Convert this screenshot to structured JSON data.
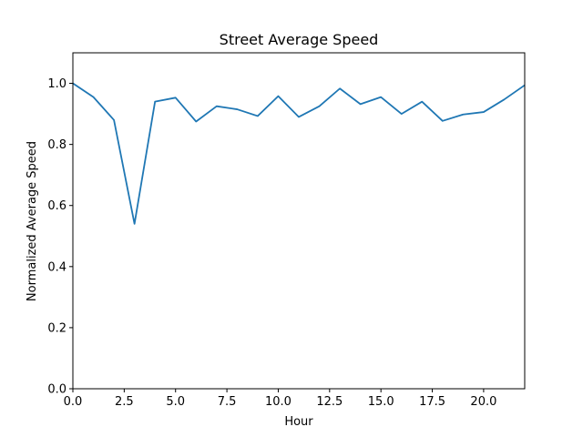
{
  "chart_data": {
    "type": "line",
    "title": "Street Average Speed",
    "xlabel": "Hour",
    "ylabel": "Normalized Average Speed",
    "xlim": [
      0,
      22
    ],
    "ylim": [
      0,
      1.1
    ],
    "xticks": [
      0,
      2.5,
      5,
      7.5,
      10,
      12.5,
      15,
      17.5,
      20
    ],
    "xtick_labels": [
      "0.0",
      "2.5",
      "5.0",
      "7.5",
      "10.0",
      "12.5",
      "15.0",
      "17.5",
      "20.0"
    ],
    "yticks": [
      0,
      0.2,
      0.4,
      0.6,
      0.8,
      1.0
    ],
    "ytick_labels": [
      "0.0",
      "0.2",
      "0.4",
      "0.6",
      "0.8",
      "1.0"
    ],
    "grid": false,
    "legend": "none",
    "series": [
      {
        "color": "#1f77b4",
        "x": [
          0,
          1,
          2,
          3,
          4,
          5,
          6,
          7,
          8,
          9,
          10,
          11,
          12,
          13,
          14,
          15,
          16,
          17,
          18,
          19,
          20,
          21,
          22
        ],
        "y": [
          1.0,
          0.955,
          0.88,
          0.54,
          0.94,
          0.953,
          0.875,
          0.925,
          0.915,
          0.893,
          0.958,
          0.89,
          0.925,
          0.983,
          0.932,
          0.955,
          0.9,
          0.94,
          0.877,
          0.898,
          0.906,
          0.947,
          0.994
        ]
      }
    ]
  }
}
